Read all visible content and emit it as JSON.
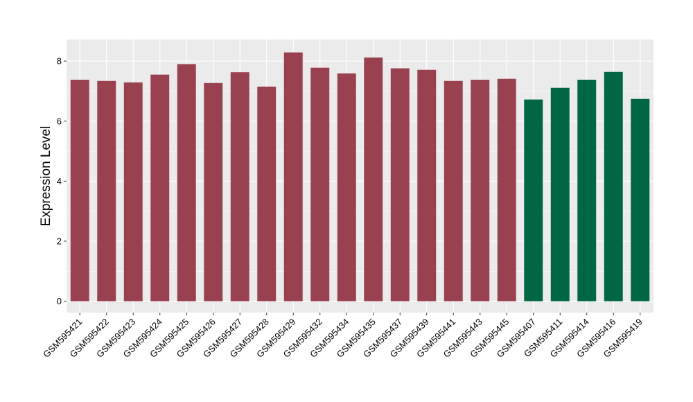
{
  "chart_data": {
    "type": "bar",
    "title": "",
    "xlabel": "",
    "ylabel": "Expression Level",
    "ylim": [
      -0.38,
      8.72
    ],
    "yticks": [
      0,
      2,
      4,
      6,
      8
    ],
    "grid": true,
    "legend": "none",
    "colors": {
      "panel": "#ebebeb",
      "grid": "#ffffff",
      "group_a": "#9a4150",
      "group_b": "#006644"
    },
    "categories": [
      "GSM595421",
      "GSM595422",
      "GSM595423",
      "GSM595424",
      "GSM595425",
      "GSM595426",
      "GSM595427",
      "GSM595428",
      "GSM595429",
      "GSM595432",
      "GSM595434",
      "GSM595435",
      "GSM595437",
      "GSM595439",
      "GSM595441",
      "GSM595443",
      "GSM595445",
      "GSM595407",
      "GSM595411",
      "GSM595414",
      "GSM595416",
      "GSM595419"
    ],
    "values": [
      7.38,
      7.34,
      7.29,
      7.55,
      7.9,
      7.27,
      7.63,
      7.15,
      8.29,
      7.78,
      7.59,
      8.12,
      7.76,
      7.71,
      7.34,
      7.38,
      7.41,
      6.72,
      7.11,
      7.38,
      7.64,
      6.74
    ],
    "group": [
      "a",
      "a",
      "a",
      "a",
      "a",
      "a",
      "a",
      "a",
      "a",
      "a",
      "a",
      "a",
      "a",
      "a",
      "a",
      "a",
      "a",
      "b",
      "b",
      "b",
      "b",
      "b"
    ]
  }
}
